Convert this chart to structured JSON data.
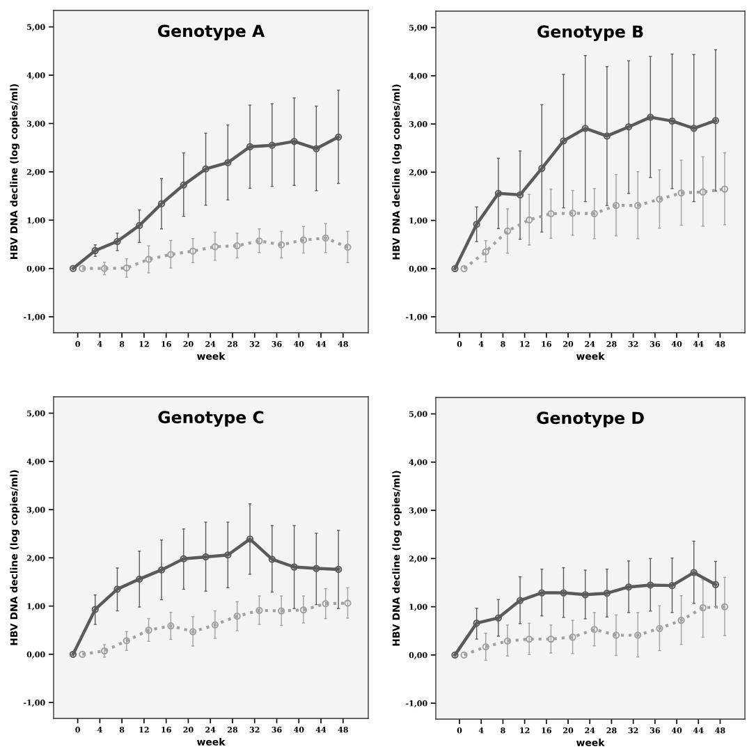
{
  "chart_data": [
    {
      "type": "line",
      "title": "Genotype A",
      "xlabel": "week",
      "ylabel": "HBV DNA decline (log copies/ml)",
      "categories": [
        "0",
        "4",
        "8",
        "12",
        "16",
        "20",
        "24",
        "28",
        "32",
        "36",
        "40",
        "44",
        "48"
      ],
      "ylim": [
        -1.33,
        5.34
      ],
      "yticks": [
        {
          "value": -1,
          "label": "-1,00"
        },
        {
          "value": 0,
          "label": "0,00"
        },
        {
          "value": 1,
          "label": "1,00"
        },
        {
          "value": 2,
          "label": "2,00"
        },
        {
          "value": 3,
          "label": "3,00"
        },
        {
          "value": 4,
          "label": "4,00"
        },
        {
          "value": 5,
          "label": "5,00"
        }
      ],
      "marker": "circle",
      "series": [
        {
          "color": "#5a5a5a",
          "line_style": "solid",
          "values": [
            0,
            0.37,
            0.56,
            0.89,
            1.34,
            1.73,
            2.06,
            2.19,
            2.52,
            2.55,
            2.63,
            2.48,
            2.72
          ],
          "errors": [
            null,
            [
              0.25,
              0.49
            ],
            [
              0.37,
              0.73
            ],
            [
              0.54,
              1.21
            ],
            [
              0.82,
              1.86
            ],
            [
              1.08,
              2.39
            ],
            [
              1.31,
              2.8
            ],
            [
              1.42,
              2.97
            ],
            [
              1.66,
              3.38
            ],
            [
              1.7,
              3.41
            ],
            [
              1.72,
              3.53
            ],
            [
              1.61,
              3.36
            ],
            [
              1.76,
              3.69
            ]
          ]
        },
        {
          "color": "#a0a0a0",
          "line_style": "dotted",
          "values": [
            0,
            0.0,
            0.01,
            0.19,
            0.29,
            0.36,
            0.45,
            0.47,
            0.57,
            0.49,
            0.59,
            0.63,
            0.44
          ],
          "errors": [
            null,
            [
              -0.13,
              0.13
            ],
            [
              -0.18,
              0.2
            ],
            [
              -0.09,
              0.47
            ],
            [
              0.01,
              0.58
            ],
            [
              0.12,
              0.62
            ],
            [
              0.17,
              0.75
            ],
            [
              0.22,
              0.73
            ],
            [
              0.33,
              0.82
            ],
            [
              0.22,
              0.77
            ],
            [
              0.32,
              0.87
            ],
            [
              0.33,
              0.93
            ],
            [
              0.12,
              0.77
            ]
          ]
        }
      ]
    },
    {
      "type": "line",
      "title": "Genotype B",
      "xlabel": "week",
      "ylabel": "HBV DNA decline (log copies/ml)",
      "categories": [
        "0",
        "4",
        "8",
        "12",
        "16",
        "20",
        "24",
        "28",
        "32",
        "36",
        "40",
        "44",
        "48"
      ],
      "ylim": [
        -1.33,
        5.34
      ],
      "yticks": [
        {
          "value": -1,
          "label": "-1,00"
        },
        {
          "value": 0,
          "label": "0,00"
        },
        {
          "value": 1,
          "label": "1,00"
        },
        {
          "value": 2,
          "label": "2,00"
        },
        {
          "value": 3,
          "label": "3,00"
        },
        {
          "value": 4,
          "label": "4,00"
        },
        {
          "value": 5,
          "label": "5,00"
        }
      ],
      "marker": "circle",
      "series": [
        {
          "color": "#5a5a5a",
          "line_style": "solid",
          "values": [
            0,
            0.92,
            1.56,
            1.53,
            2.08,
            2.65,
            2.91,
            2.75,
            2.94,
            3.14,
            3.06,
            2.91,
            3.07
          ],
          "errors": [
            null,
            [
              0.56,
              1.28
            ],
            [
              0.83,
              2.29
            ],
            [
              0.61,
              2.44
            ],
            [
              0.76,
              3.4
            ],
            [
              1.26,
              4.03
            ],
            [
              1.39,
              4.42
            ],
            [
              1.31,
              4.19
            ],
            [
              1.56,
              4.31
            ],
            [
              1.89,
              4.4
            ],
            [
              1.66,
              4.45
            ],
            [
              1.39,
              4.44
            ],
            [
              1.61,
              4.54
            ]
          ]
        },
        {
          "color": "#a0a0a0",
          "line_style": "dotted",
          "values": [
            0,
            0.35,
            0.78,
            1.01,
            1.14,
            1.15,
            1.14,
            1.31,
            1.31,
            1.44,
            1.57,
            1.59,
            1.65
          ],
          "errors": [
            null,
            [
              0.14,
              0.58
            ],
            [
              0.32,
              1.24
            ],
            [
              0.49,
              1.54
            ],
            [
              0.63,
              1.65
            ],
            [
              0.69,
              1.62
            ],
            [
              0.62,
              1.66
            ],
            [
              0.68,
              1.95
            ],
            [
              0.62,
              2.01
            ],
            [
              0.84,
              2.05
            ],
            [
              0.9,
              2.25
            ],
            [
              0.88,
              2.32
            ],
            [
              0.91,
              2.4
            ]
          ]
        }
      ]
    },
    {
      "type": "line",
      "title": "Genotype C",
      "xlabel": "week",
      "ylabel": "HBV DNA decline (log copies/ml)",
      "categories": [
        "0",
        "4",
        "8",
        "12",
        "16",
        "20",
        "24",
        "28",
        "32",
        "36",
        "40",
        "44",
        "48"
      ],
      "ylim": [
        -1.33,
        5.34
      ],
      "yticks": [
        {
          "value": -1,
          "label": "-1,00"
        },
        {
          "value": 0,
          "label": "0,00"
        },
        {
          "value": 1,
          "label": "1,00"
        },
        {
          "value": 2,
          "label": "2,00"
        },
        {
          "value": 3,
          "label": "3,00"
        },
        {
          "value": 4,
          "label": "4,00"
        },
        {
          "value": 5,
          "label": "5,00"
        }
      ],
      "marker": "circle",
      "series": [
        {
          "color": "#5a5a5a",
          "line_style": "solid",
          "values": [
            0,
            0.93,
            1.35,
            1.56,
            1.75,
            1.98,
            2.02,
            2.06,
            2.39,
            1.97,
            1.81,
            1.78,
            1.76
          ],
          "errors": [
            null,
            [
              0.62,
              1.23
            ],
            [
              0.9,
              1.79
            ],
            [
              0.98,
              2.14
            ],
            [
              1.13,
              2.37
            ],
            [
              1.35,
              2.6
            ],
            [
              1.31,
              2.74
            ],
            [
              1.38,
              2.74
            ],
            [
              1.66,
              3.12
            ],
            [
              1.29,
              2.67
            ],
            [
              0.95,
              2.67
            ],
            [
              1.03,
              2.51
            ],
            [
              0.95,
              2.57
            ]
          ]
        },
        {
          "color": "#a0a0a0",
          "line_style": "dotted",
          "values": [
            0,
            0.07,
            0.28,
            0.5,
            0.59,
            0.47,
            0.61,
            0.79,
            0.91,
            0.9,
            0.92,
            1.05,
            1.06
          ],
          "errors": [
            null,
            [
              -0.06,
              0.2
            ],
            [
              0.08,
              0.47
            ],
            [
              0.27,
              0.74
            ],
            [
              0.31,
              0.87
            ],
            [
              0.17,
              0.78
            ],
            [
              0.33,
              0.9
            ],
            [
              0.49,
              1.09
            ],
            [
              0.62,
              1.21
            ],
            [
              0.6,
              1.21
            ],
            [
              0.65,
              1.21
            ],
            [
              0.74,
              1.36
            ],
            [
              0.75,
              1.38
            ]
          ]
        }
      ]
    },
    {
      "type": "line",
      "title": "Genotype D",
      "xlabel": "week",
      "ylabel": "HBV DNA decline (log copies/ml)",
      "categories": [
        "0",
        "4",
        "8",
        "12",
        "16",
        "20",
        "24",
        "28",
        "32",
        "36",
        "40",
        "44",
        "48"
      ],
      "ylim": [
        -1.33,
        5.34
      ],
      "yticks": [
        {
          "value": -1,
          "label": "-1,00"
        },
        {
          "value": 0,
          "label": "0,00"
        },
        {
          "value": 1,
          "label": "1,00"
        },
        {
          "value": 2,
          "label": "2,00"
        },
        {
          "value": 3,
          "label": "3,00"
        },
        {
          "value": 4,
          "label": "4,00"
        },
        {
          "value": 5,
          "label": "5,00"
        }
      ],
      "marker": "circle",
      "series": [
        {
          "color": "#5a5a5a",
          "line_style": "solid",
          "values": [
            0,
            0.66,
            0.77,
            1.13,
            1.29,
            1.29,
            1.25,
            1.28,
            1.41,
            1.45,
            1.44,
            1.71,
            1.46
          ],
          "errors": [
            null,
            [
              0.33,
              0.97
            ],
            [
              0.39,
              1.15
            ],
            [
              0.65,
              1.62
            ],
            [
              0.81,
              1.78
            ],
            [
              0.78,
              1.81
            ],
            [
              0.75,
              1.76
            ],
            [
              0.79,
              1.78
            ],
            [
              0.88,
              1.95
            ],
            [
              0.91,
              2.0
            ],
            [
              0.88,
              2.01
            ],
            [
              1.07,
              2.36
            ],
            [
              1.0,
              1.94
            ]
          ]
        },
        {
          "color": "#a0a0a0",
          "line_style": "dotted",
          "values": [
            0,
            0.17,
            0.29,
            0.33,
            0.33,
            0.37,
            0.53,
            0.41,
            0.41,
            0.55,
            0.72,
            0.98,
            1.0
          ],
          "errors": [
            null,
            [
              -0.11,
              0.45
            ],
            [
              -0.02,
              0.62
            ],
            [
              0.01,
              0.66
            ],
            [
              0.04,
              0.62
            ],
            [
              0.03,
              0.72
            ],
            [
              0.19,
              0.88
            ],
            [
              -0.01,
              0.83
            ],
            [
              -0.04,
              0.88
            ],
            [
              0.09,
              1.02
            ],
            [
              0.22,
              1.23
            ],
            [
              0.37,
              1.56
            ],
            [
              0.4,
              1.61
            ]
          ]
        }
      ]
    }
  ]
}
